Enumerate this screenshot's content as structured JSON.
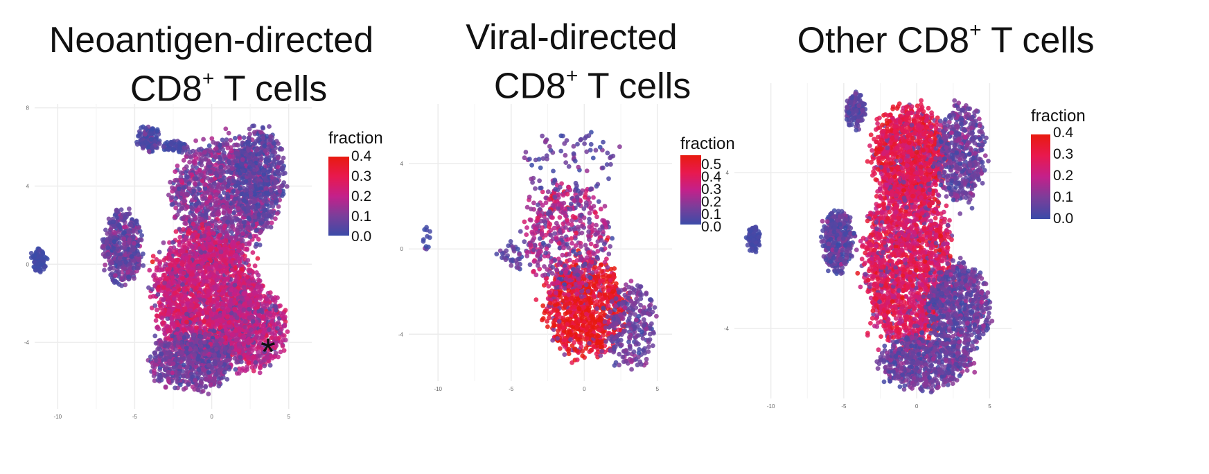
{
  "chart_data": [
    {
      "type": "scatter",
      "title_prefix": "Neoantigen-directed",
      "title_cell": "CD8",
      "title_sup": "+",
      "title_suffix": "T cells",
      "xlabel": "",
      "ylabel": "",
      "xlim": [
        -11.5,
        6.5
      ],
      "ylim": [
        -7.4,
        8.2
      ],
      "xticks": [
        "-10",
        "-5",
        "0",
        "5"
      ],
      "xtick_values": [
        -10,
        -5,
        0,
        5
      ],
      "yticks": [
        "-4",
        "0",
        "4",
        "8"
      ],
      "ytick_values": [
        -4,
        0,
        4,
        8
      ],
      "grid": true,
      "legend": {
        "title": "fraction",
        "ticks": [
          "0.4",
          "0.3",
          "0.2",
          "0.1",
          "0.0"
        ],
        "max": 0.4
      },
      "annotation": "*",
      "annotation_at": [
        3.8,
        -4.1
      ],
      "clusters": [
        {
          "cx": 0.8,
          "cy": 3.5,
          "rx": 3.2,
          "ry": 2.7,
          "n": 1300,
          "fraction": 0.12,
          "spread": 0.05
        },
        {
          "cx": 3.0,
          "cy": 4.6,
          "rx": 1.6,
          "ry": 2.2,
          "n": 500,
          "fraction": 0.06,
          "spread": 0.04
        },
        {
          "cx": -0.4,
          "cy": -1.6,
          "rx": 3.2,
          "ry": 3.2,
          "n": 2200,
          "fraction": 0.22,
          "spread": 0.04
        },
        {
          "cx": 2.6,
          "cy": -3.3,
          "rx": 2.2,
          "ry": 2.0,
          "n": 700,
          "fraction": 0.2,
          "spread": 0.04
        },
        {
          "cx": -1.2,
          "cy": -5.0,
          "rx": 2.6,
          "ry": 1.4,
          "n": 700,
          "fraction": 0.1,
          "spread": 0.04
        },
        {
          "cx": -5.8,
          "cy": 0.9,
          "rx": 1.2,
          "ry": 1.8,
          "n": 450,
          "fraction": 0.08,
          "spread": 0.04
        },
        {
          "cx": -4.1,
          "cy": 6.4,
          "rx": 0.7,
          "ry": 0.6,
          "n": 140,
          "fraction": 0.04,
          "spread": 0.04
        },
        {
          "cx": -11.2,
          "cy": 0.2,
          "rx": 0.45,
          "ry": 0.55,
          "n": 80,
          "fraction": 0.01,
          "spread": 0.01
        },
        {
          "cx": -2.4,
          "cy": 6.0,
          "rx": 0.8,
          "ry": 0.3,
          "n": 60,
          "fraction": 0.03,
          "spread": 0.03
        }
      ]
    },
    {
      "type": "scatter",
      "title_prefix": "Viral-directed",
      "title_cell": "CD8",
      "title_sup": "+",
      "title_suffix": "T cells",
      "xlabel": "",
      "ylabel": "",
      "xlim": [
        -12,
        6
      ],
      "ylim": [
        -6.2,
        6.8
      ],
      "xticks": [
        "-10",
        "-5",
        "0",
        "5"
      ],
      "xtick_values": [
        -10,
        -5,
        0,
        5
      ],
      "yticks": [
        "-4",
        "0",
        "4"
      ],
      "ytick_values": [
        -4,
        0,
        4
      ],
      "grid": true,
      "legend": {
        "title": "fraction",
        "ticks": [
          "0.5",
          "0.4",
          "0.3",
          "0.2",
          "0.1",
          "0.0"
        ],
        "max": 0.55
      },
      "clusters": [
        {
          "cx": 0.0,
          "cy": -2.7,
          "rx": 2.6,
          "ry": 2.2,
          "n": 900,
          "fraction": 0.5,
          "spread": 0.08
        },
        {
          "cx": -1.2,
          "cy": 0.6,
          "rx": 2.8,
          "ry": 2.4,
          "n": 500,
          "fraction": 0.22,
          "spread": 0.1
        },
        {
          "cx": 3.2,
          "cy": -3.5,
          "rx": 1.6,
          "ry": 2.0,
          "n": 260,
          "fraction": 0.12,
          "spread": 0.05
        },
        {
          "cx": -5.0,
          "cy": -0.4,
          "rx": 0.9,
          "ry": 0.7,
          "n": 35,
          "fraction": 0.08,
          "spread": 0.05
        },
        {
          "cx": -1.0,
          "cy": 4.0,
          "rx": 3.4,
          "ry": 1.6,
          "n": 80,
          "fraction": 0.1,
          "spread": 0.08
        },
        {
          "cx": -10.8,
          "cy": 0.5,
          "rx": 0.3,
          "ry": 0.5,
          "n": 12,
          "fraction": 0.05,
          "spread": 0.1
        }
      ]
    },
    {
      "type": "scatter",
      "title_prefix": "",
      "title_cell": "Other CD8",
      "title_sup": "+",
      "title_suffix": "T cells",
      "xlabel": "",
      "ylabel": "",
      "xlim": [
        -12.5,
        6.5
      ],
      "ylim": [
        -7.6,
        8.6
      ],
      "xticks": [
        "-10",
        "-5",
        "0",
        "5"
      ],
      "xtick_values": [
        -10,
        -5,
        0,
        5
      ],
      "yticks": [
        "-4",
        "4"
      ],
      "ytick_values": [
        -4,
        4
      ],
      "grid": true,
      "legend": {
        "title": "fraction",
        "ticks": [
          "0.4",
          "0.3",
          "0.2",
          "0.1",
          "0.0"
        ],
        "max": 0.4
      },
      "clusters": [
        {
          "cx": -0.5,
          "cy": 5.0,
          "rx": 2.4,
          "ry": 2.3,
          "n": 1100,
          "fraction": 0.3,
          "spread": 0.04
        },
        {
          "cx": 3.0,
          "cy": 5.0,
          "rx": 1.6,
          "ry": 2.4,
          "n": 500,
          "fraction": 0.08,
          "spread": 0.04
        },
        {
          "cx": -0.6,
          "cy": -0.5,
          "rx": 2.8,
          "ry": 4.4,
          "n": 2000,
          "fraction": 0.27,
          "spread": 0.05
        },
        {
          "cx": 2.8,
          "cy": -3.0,
          "rx": 2.0,
          "ry": 2.2,
          "n": 700,
          "fraction": 0.08,
          "spread": 0.04
        },
        {
          "cx": 0.6,
          "cy": -5.8,
          "rx": 3.0,
          "ry": 1.3,
          "n": 600,
          "fraction": 0.08,
          "spread": 0.04
        },
        {
          "cx": -5.4,
          "cy": 0.5,
          "rx": 1.0,
          "ry": 1.6,
          "n": 380,
          "fraction": 0.06,
          "spread": 0.04
        },
        {
          "cx": -4.2,
          "cy": 7.2,
          "rx": 0.6,
          "ry": 0.9,
          "n": 140,
          "fraction": 0.05,
          "spread": 0.03
        },
        {
          "cx": -11.2,
          "cy": 0.6,
          "rx": 0.45,
          "ry": 0.7,
          "n": 80,
          "fraction": 0.02,
          "spread": 0.01
        }
      ]
    }
  ],
  "colors": {
    "low": "#3b4ba8",
    "mid_low": "#7a3e9a",
    "mid": "#c4208a",
    "mid_high": "#e8194e",
    "high": "#e81a0f",
    "grid": "#ececec",
    "tick": "#666666"
  }
}
